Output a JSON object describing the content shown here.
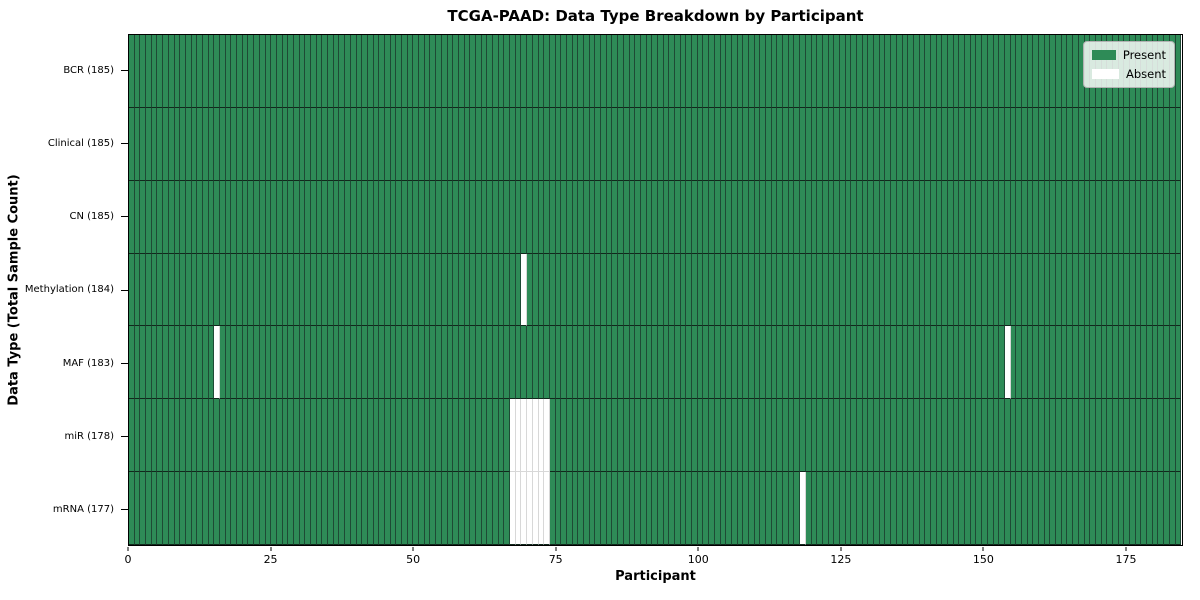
{
  "chart_data": {
    "type": "heatmap",
    "title": "TCGA-PAAD: Data Type Breakdown by Participant",
    "xlabel": "Participant",
    "ylabel": "Data Type (Total Sample Count)",
    "n_participants": 185,
    "xlim": [
      0,
      185
    ],
    "x_ticks": [
      0,
      25,
      50,
      75,
      100,
      125,
      150,
      175
    ],
    "grid": false,
    "legend_position": "upper right",
    "rows": [
      {
        "label": "BCR (185)",
        "data_type": "BCR",
        "total": 185,
        "absent": []
      },
      {
        "label": "Clinical (185)",
        "data_type": "Clinical",
        "total": 185,
        "absent": []
      },
      {
        "label": "CN (185)",
        "data_type": "CN",
        "total": 185,
        "absent": []
      },
      {
        "label": "Methylation (184)",
        "data_type": "Methylation",
        "total": 184,
        "absent": [
          69
        ]
      },
      {
        "label": "MAF (183)",
        "data_type": "MAF",
        "total": 183,
        "absent": [
          15,
          154
        ]
      },
      {
        "label": "miR (178)",
        "data_type": "miR",
        "total": 178,
        "absent": [
          67,
          68,
          69,
          70,
          71,
          72,
          73
        ]
      },
      {
        "label": "mRNA (177)",
        "data_type": "mRNA",
        "total": 177,
        "absent": [
          67,
          68,
          69,
          70,
          71,
          72,
          73,
          118
        ]
      }
    ],
    "legend": [
      {
        "label": "Present",
        "color": "#2e8b57"
      },
      {
        "label": "Absent",
        "color": "#ffffff"
      }
    ],
    "colors": {
      "present": "#2e8b57",
      "absent": "#ffffff",
      "cell_edge_dark": "#1e4a35",
      "row_line": "#11281c",
      "cell_edge_light": "#d8d8d8"
    }
  }
}
